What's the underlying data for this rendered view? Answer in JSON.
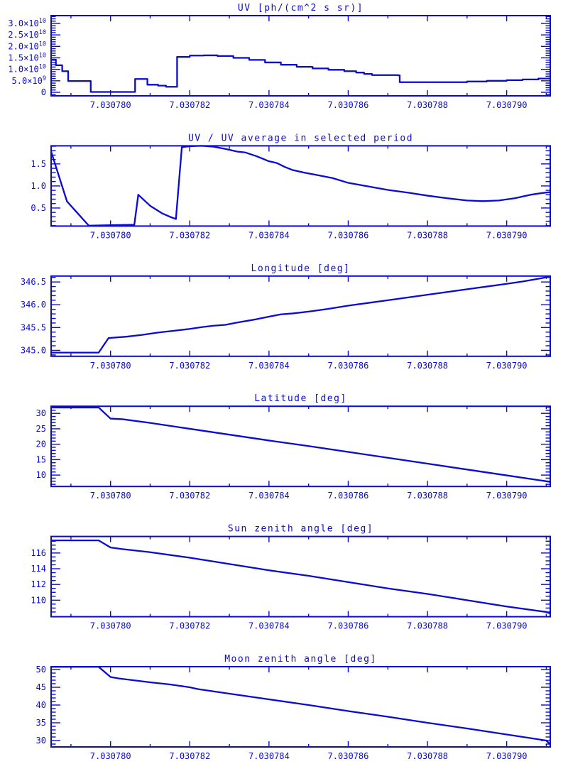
{
  "page": {
    "background": "#ffffff"
  },
  "colors": {
    "plot": "#0a0ad2"
  },
  "chart_data": [
    {
      "id": "uv",
      "type": "step-line",
      "title": "UV [ph/(cm^2 s sr)]",
      "xlabel": "",
      "ylabel": "",
      "grid": false,
      "legend": "none",
      "xlim": [
        7.0307785,
        7.0307911
      ],
      "ylim": [
        -1550000000.0,
        33400000000.0
      ],
      "xticks": {
        "values": [
          7.03078,
          7.030782,
          7.030784,
          7.030786,
          7.030788,
          7.03079
        ],
        "labels": [
          "7.030780",
          "7.030782",
          "7.030784",
          "7.030786",
          "7.030788",
          "7.030790"
        ],
        "minor_step": 1e-06
      },
      "yticks": {
        "values": [
          0,
          5000000000.0,
          10000000000.0,
          15000000000.0,
          20000000000.0,
          25000000000.0,
          30000000000.0
        ],
        "labels": [
          "0",
          "5.0×10^9",
          "1.0×10^10",
          "1.5×10^10",
          "2.0×10^10",
          "2.5×10^10",
          "3.0×10^10"
        ],
        "minor_step": 1000000000.0
      },
      "points": [
        [
          7.0307785,
          14200000000.0
        ],
        [
          7.03077862,
          11800000000.0
        ],
        [
          7.03077878,
          9200000000.0
        ],
        [
          7.03077893,
          4900000000.0
        ],
        [
          7.0307795,
          150000000.0
        ],
        [
          7.03078062,
          5800000000.0
        ],
        [
          7.03078093,
          3300000000.0
        ],
        [
          7.0307812,
          2900000000.0
        ],
        [
          7.0307814,
          2400000000.0
        ],
        [
          7.03078168,
          15400000000.0
        ],
        [
          7.030782,
          16000000000.0
        ],
        [
          7.03078235,
          16100000000.0
        ],
        [
          7.0307827,
          15800000000.0
        ],
        [
          7.0307831,
          15000000000.0
        ],
        [
          7.0307835,
          14100000000.0
        ],
        [
          7.0307839,
          13000000000.0
        ],
        [
          7.0307843,
          12000000000.0
        ],
        [
          7.0307847,
          11100000000.0
        ],
        [
          7.0307851,
          10400000000.0
        ],
        [
          7.0307855,
          9800000000.0
        ],
        [
          7.0307859,
          9200000000.0
        ],
        [
          7.0307862,
          8600000000.0
        ],
        [
          7.0307864,
          8000000000.0
        ],
        [
          7.0307866,
          7500000000.0
        ],
        [
          7.03078725,
          7400000000.0
        ],
        [
          7.0307873,
          4400000000.0
        ],
        [
          7.0307885,
          4400000000.0
        ],
        [
          7.030789,
          4700000000.0
        ],
        [
          7.0307895,
          5000000000.0
        ],
        [
          7.03079,
          5300000000.0
        ],
        [
          7.0307904,
          5600000000.0
        ],
        [
          7.0307908,
          6000000000.0
        ],
        [
          7.0307911,
          6300000000.0
        ]
      ]
    },
    {
      "id": "uv-ratio",
      "type": "line",
      "title": "UV / UV average in selected period",
      "xlabel": "",
      "ylabel": "",
      "grid": false,
      "legend": "none",
      "xlim": [
        7.0307785,
        7.0307911
      ],
      "ylim": [
        0.09,
        1.91
      ],
      "xticks": {
        "values": [
          7.03078,
          7.030782,
          7.030784,
          7.030786,
          7.030788,
          7.03079
        ],
        "labels": [
          "7.030780",
          "7.030782",
          "7.030784",
          "7.030786",
          "7.030788",
          "7.030790"
        ],
        "minor_step": 1e-06
      },
      "yticks": {
        "values": [
          0.5,
          1.0,
          1.5
        ],
        "labels": [
          "0.5",
          "1.0",
          "1.5"
        ],
        "minor_step": 0.1
      },
      "points": [
        [
          7.0307785,
          1.78
        ],
        [
          7.0307789,
          0.65
        ],
        [
          7.0307791,
          0.45
        ],
        [
          7.03077945,
          0.1
        ],
        [
          7.03078,
          0.11
        ],
        [
          7.0307806,
          0.12
        ],
        [
          7.0307807,
          0.8
        ],
        [
          7.030781,
          0.55
        ],
        [
          7.0307813,
          0.38
        ],
        [
          7.0307815,
          0.3
        ],
        [
          7.03078165,
          0.25
        ],
        [
          7.0307818,
          1.88
        ],
        [
          7.030782,
          1.9
        ],
        [
          7.0307823,
          1.91
        ],
        [
          7.0307826,
          1.89
        ],
        [
          7.0307829,
          1.84
        ],
        [
          7.0307832,
          1.78
        ],
        [
          7.0307834,
          1.76
        ],
        [
          7.0307837,
          1.67
        ],
        [
          7.030784,
          1.56
        ],
        [
          7.0307842,
          1.52
        ],
        [
          7.0307844,
          1.43
        ],
        [
          7.0307846,
          1.36
        ],
        [
          7.0307849,
          1.3
        ],
        [
          7.0307852,
          1.25
        ],
        [
          7.0307856,
          1.18
        ],
        [
          7.030786,
          1.07
        ],
        [
          7.0307865,
          0.99
        ],
        [
          7.030787,
          0.91
        ],
        [
          7.0307875,
          0.85
        ],
        [
          7.030788,
          0.78
        ],
        [
          7.0307885,
          0.72
        ],
        [
          7.030789,
          0.67
        ],
        [
          7.0307894,
          0.655
        ],
        [
          7.0307898,
          0.67
        ],
        [
          7.0307902,
          0.72
        ],
        [
          7.0307906,
          0.8
        ],
        [
          7.0307909,
          0.84
        ],
        [
          7.0307911,
          0.86
        ]
      ]
    },
    {
      "id": "longitude",
      "type": "line",
      "title": "Longitude [deg]",
      "xlabel": "",
      "ylabel": "",
      "grid": false,
      "legend": "none",
      "xlim": [
        7.0307785,
        7.0307911
      ],
      "ylim": [
        344.87,
        346.63
      ],
      "xticks": {
        "values": [
          7.03078,
          7.030782,
          7.030784,
          7.030786,
          7.030788,
          7.03079
        ],
        "labels": [
          "7.030780",
          "7.030782",
          "7.030784",
          "7.030786",
          "7.030788",
          "7.030790"
        ],
        "minor_step": 1e-06
      },
      "yticks": {
        "values": [
          345.0,
          345.5,
          346.0,
          346.5
        ],
        "labels": [
          "345.0",
          "345.5",
          "346.0",
          "346.5"
        ],
        "minor_step": 0.1
      },
      "points": [
        [
          7.0307785,
          344.95
        ],
        [
          7.0307797,
          344.95
        ],
        [
          7.03077995,
          345.27
        ],
        [
          7.0307804,
          345.3
        ],
        [
          7.0307808,
          345.34
        ],
        [
          7.0307812,
          345.39
        ],
        [
          7.0307816,
          345.43
        ],
        [
          7.030782,
          345.47
        ],
        [
          7.0307823,
          345.51
        ],
        [
          7.0307826,
          345.54
        ],
        [
          7.0307829,
          345.56
        ],
        [
          7.0307832,
          345.61
        ],
        [
          7.0307836,
          345.67
        ],
        [
          7.030784,
          345.74
        ],
        [
          7.0307843,
          345.79
        ],
        [
          7.0307846,
          345.81
        ],
        [
          7.030785,
          345.85
        ],
        [
          7.0307855,
          345.91
        ],
        [
          7.030786,
          345.98
        ],
        [
          7.0307865,
          346.04
        ],
        [
          7.030787,
          346.1
        ],
        [
          7.0307875,
          346.16
        ],
        [
          7.030788,
          346.22
        ],
        [
          7.0307885,
          346.28
        ],
        [
          7.030789,
          346.34
        ],
        [
          7.0307895,
          346.4
        ],
        [
          7.03079,
          346.46
        ],
        [
          7.0307904,
          346.51
        ],
        [
          7.0307908,
          346.57
        ],
        [
          7.0307911,
          346.62
        ]
      ]
    },
    {
      "id": "latitude",
      "type": "line",
      "title": "Latitude [deg]",
      "xlabel": "",
      "ylabel": "",
      "grid": false,
      "legend": "none",
      "xlim": [
        7.0307785,
        7.0307911
      ],
      "ylim": [
        6.3,
        32.3
      ],
      "xticks": {
        "values": [
          7.03078,
          7.030782,
          7.030784,
          7.030786,
          7.030788,
          7.03079
        ],
        "labels": [
          "7.030780",
          "7.030782",
          "7.030784",
          "7.030786",
          "7.030788",
          "7.030790"
        ],
        "minor_step": 1e-06
      },
      "yticks": {
        "values": [
          10,
          15,
          20,
          25,
          30
        ],
        "labels": [
          "10",
          "15",
          "20",
          "25",
          "30"
        ],
        "minor_step": 1
      },
      "points": [
        [
          7.0307785,
          31.9
        ],
        [
          7.0307797,
          31.9
        ],
        [
          7.03078,
          28.3
        ],
        [
          7.0307803,
          28.1
        ],
        [
          7.030781,
          26.9
        ],
        [
          7.030782,
          25.0
        ],
        [
          7.030783,
          23.1
        ],
        [
          7.030784,
          21.2
        ],
        [
          7.030785,
          19.4
        ],
        [
          7.030786,
          17.5
        ],
        [
          7.030787,
          15.6
        ],
        [
          7.030788,
          13.7
        ],
        [
          7.030789,
          11.8
        ],
        [
          7.03079,
          9.9
        ],
        [
          7.030791,
          8.0
        ],
        [
          7.0307911,
          7.8
        ]
      ]
    },
    {
      "id": "sun-zenith",
      "type": "line",
      "title": "Sun zenith angle [deg]",
      "xlabel": "",
      "ylabel": "",
      "grid": false,
      "legend": "none",
      "xlim": [
        7.0307785,
        7.0307911
      ],
      "ylim": [
        107.9,
        118.1
      ],
      "xticks": {
        "values": [
          7.03078,
          7.030782,
          7.030784,
          7.030786,
          7.030788,
          7.03079
        ],
        "labels": [
          "7.030780",
          "7.030782",
          "7.030784",
          "7.030786",
          "7.030788",
          "7.030790"
        ],
        "minor_step": 1e-06
      },
      "yticks": {
        "values": [
          110,
          112,
          114,
          116
        ],
        "labels": [
          "110",
          "112",
          "114",
          "116"
        ],
        "minor_step": 0.5
      },
      "points": [
        [
          7.0307785,
          117.6
        ],
        [
          7.0307797,
          117.6
        ],
        [
          7.03078,
          116.7
        ],
        [
          7.0307803,
          116.5
        ],
        [
          7.030781,
          116.1
        ],
        [
          7.030782,
          115.4
        ],
        [
          7.030783,
          114.6
        ],
        [
          7.030784,
          113.8
        ],
        [
          7.030785,
          113.1
        ],
        [
          7.030786,
          112.3
        ],
        [
          7.030787,
          111.5
        ],
        [
          7.030788,
          110.8
        ],
        [
          7.030789,
          110.0
        ],
        [
          7.03079,
          109.2
        ],
        [
          7.030791,
          108.5
        ],
        [
          7.0307911,
          108.3
        ]
      ]
    },
    {
      "id": "moon-zenith",
      "type": "line",
      "title": "Moon zenith angle [deg]",
      "xlabel": "",
      "ylabel": "",
      "grid": false,
      "legend": "none",
      "xlim": [
        7.0307785,
        7.0307911
      ],
      "ylim": [
        28.2,
        50.8
      ],
      "xticks": {
        "values": [
          7.03078,
          7.030782,
          7.030784,
          7.030786,
          7.030788,
          7.03079
        ],
        "labels": [
          "7.030780",
          "7.030782",
          "7.030784",
          "7.030786",
          "7.030788",
          "7.030790"
        ],
        "minor_step": 1e-06
      },
      "yticks": {
        "values": [
          30,
          35,
          40,
          45,
          50
        ],
        "labels": [
          "30",
          "35",
          "40",
          "45",
          "50"
        ],
        "minor_step": 1
      },
      "points": [
        [
          7.0307785,
          50.75
        ],
        [
          7.0307797,
          50.75
        ],
        [
          7.03078,
          47.9
        ],
        [
          7.0307802,
          47.5
        ],
        [
          7.030781,
          46.4
        ],
        [
          7.0307815,
          45.8
        ],
        [
          7.030782,
          45.0
        ],
        [
          7.0307822,
          44.5
        ],
        [
          7.030783,
          43.2
        ],
        [
          7.030784,
          41.6
        ],
        [
          7.030785,
          40.0
        ],
        [
          7.030786,
          38.3
        ],
        [
          7.030787,
          36.7
        ],
        [
          7.030788,
          35.0
        ],
        [
          7.030789,
          33.4
        ],
        [
          7.03079,
          31.7
        ],
        [
          7.030791,
          30.0
        ],
        [
          7.0307911,
          28.9
        ]
      ]
    }
  ]
}
